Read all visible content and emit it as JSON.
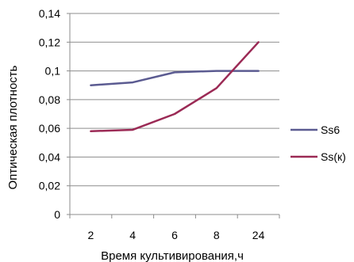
{
  "chart_data": {
    "type": "line",
    "categories": [
      "2",
      "4",
      "6",
      "8",
      "24"
    ],
    "series": [
      {
        "name": "Ss6",
        "values": [
          0.09,
          0.092,
          0.099,
          0.1,
          0.1
        ],
        "color": "#5b5b91"
      },
      {
        "name": "Ss(к)",
        "values": [
          0.058,
          0.059,
          0.07,
          0.088,
          0.12
        ],
        "color": "#9b2a55"
      }
    ],
    "xlabel": "Время культивирования,ч",
    "ylabel": "Оптическая плотность",
    "ylim": [
      0,
      0.14
    ],
    "yticks": [
      "0",
      "0,02",
      "0,04",
      "0,06",
      "0,08",
      "0,1",
      "0,12",
      "0,14"
    ],
    "grid": "horizontal",
    "legend_position": "right",
    "grid_color": "#8c8c8c"
  }
}
